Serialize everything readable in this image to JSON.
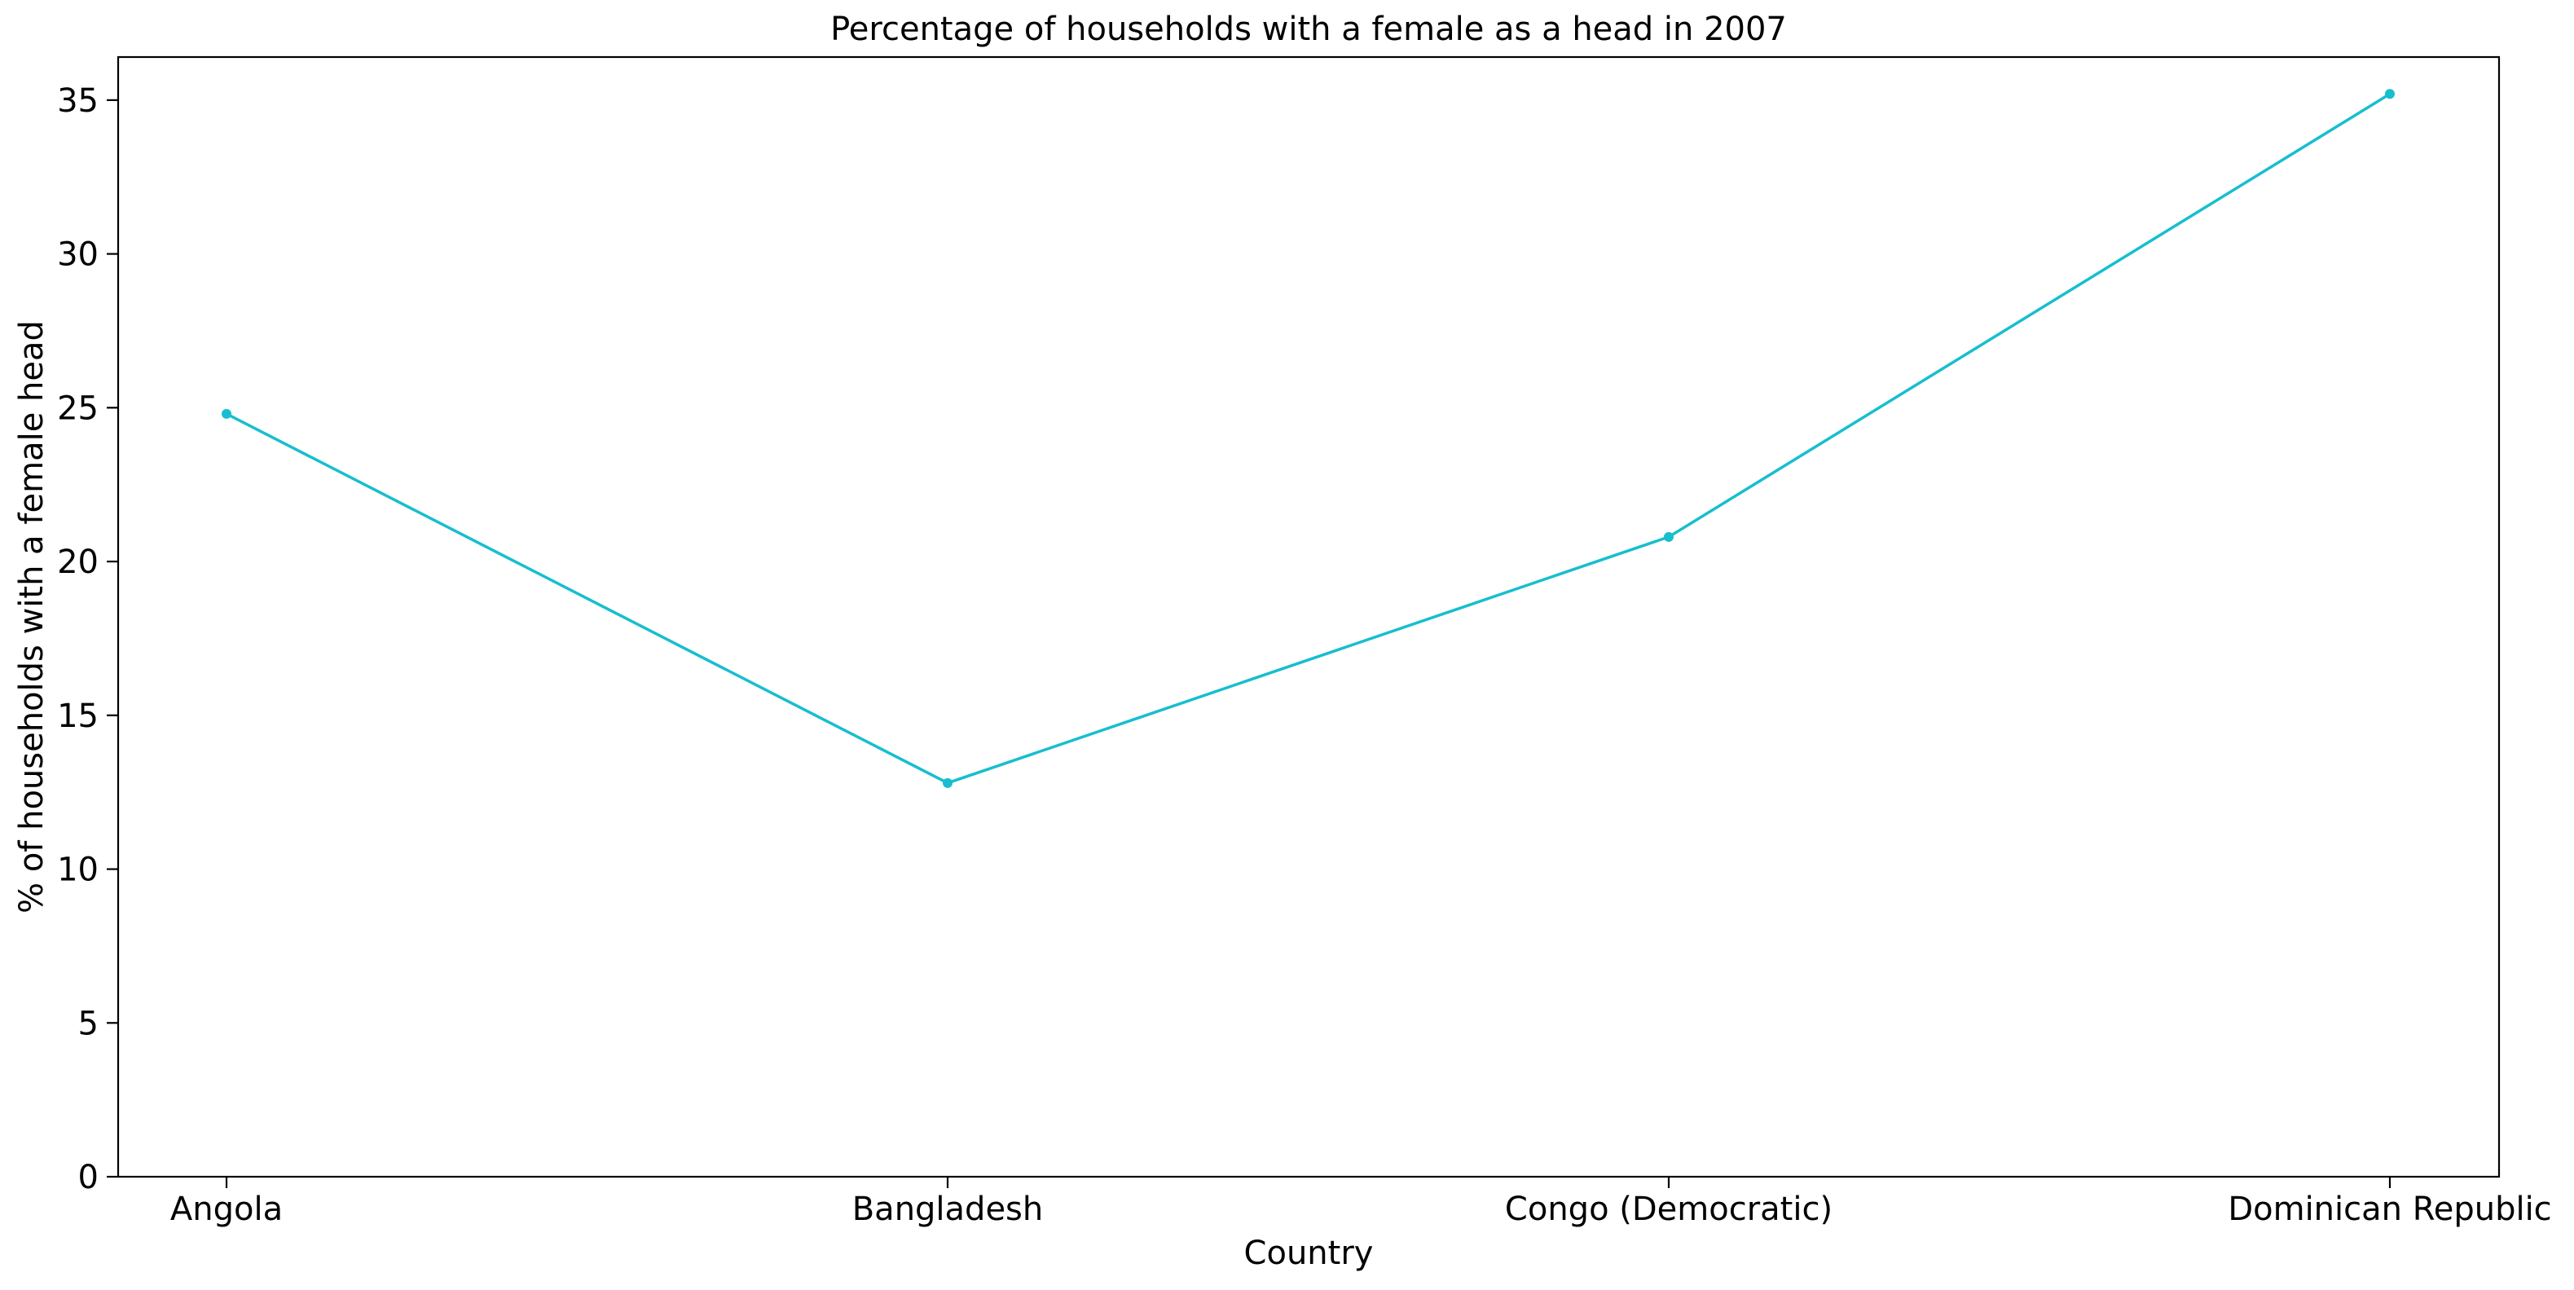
{
  "chart_data": {
    "type": "line",
    "title": "Percentage of households with a female as a head in 2007",
    "xlabel": "Country",
    "ylabel": "% of households with a female head",
    "categories": [
      "Angola",
      "Bangladesh",
      "Congo (Democratic)",
      "Dominican Republic"
    ],
    "series": [
      {
        "values": [
          24.8,
          12.8,
          20.8,
          35.2
        ],
        "color": "#17becf"
      }
    ],
    "ylim": [
      0,
      36.4
    ],
    "yticks": [
      0,
      5,
      10,
      15,
      20,
      25,
      30,
      35
    ],
    "grid": false,
    "legend": "none",
    "marker": "dot"
  }
}
